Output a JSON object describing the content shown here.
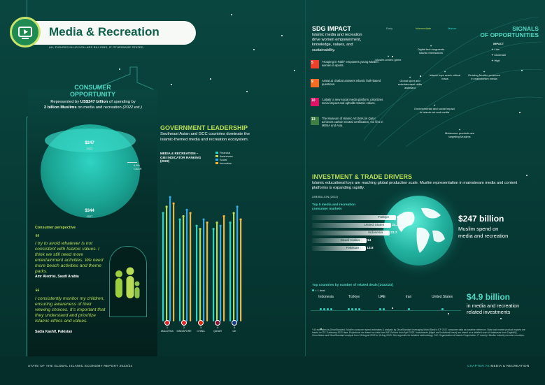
{
  "title": "Media & Recreation",
  "note": "ALL FIGURES IN US DOLLARS BILLIONS, IF OTHERWISE STATED",
  "consumer": {
    "heading_1": "CONSUMER",
    "heading_2": "OPPORTUNITY",
    "text_1": "Represented by ",
    "text_highlight": "US$247 billion",
    "text_2": " of spending by",
    "text_3_bold": "2 billion Muslims",
    "text_4": " on media and recreation ",
    "text_year": "(2022 est.)",
    "value_2022": "$247",
    "year_2022": "2022",
    "value_2027": "$344",
    "year_2027": "2027",
    "cagr_value": "6.8%",
    "cagr_label": "CAGR",
    "perspective_label": "Consumer perspective",
    "quote_1": "I try to avoid whatever is not consistent with Islamic values. I think we still need more entertainment activities. We need more beach activities and theme parks.",
    "quote_1_author": "Amr Aledrisi, Saudi Arabia",
    "quote_2": "I consistently monitor my children, ensuring awareness of their viewing choices. It’s important that they understand and prioritize Islamic ethics and values.",
    "quote_2_author": "Sadia Kashif, Pakistan"
  },
  "gov": {
    "heading": "GOVERNMENT LEADERSHIP",
    "text": "Southeast Asian and GCC countries dominate the Islamic-themed media and recreation ecosystem.",
    "chart_title_1": "MEDIA & RECREATION –",
    "chart_title_2": "GIEI INDICATOR RANKING",
    "chart_title_3": "(2022)",
    "legend": [
      {
        "label": "Financial",
        "color": "#2fd3c3"
      },
      {
        "label": "Awareness",
        "color": "#b9dc57"
      },
      {
        "label": "Social",
        "color": "#3aa8e0"
      },
      {
        "label": "Innovation",
        "color": "#f2b33a"
      }
    ],
    "countries": [
      {
        "rank": "1",
        "name": "MALAYSIA",
        "flag": "#d9272e"
      },
      {
        "rank": "2",
        "name": "SINGAPORE",
        "flag": "#e12b2b"
      },
      {
        "rank": "3",
        "name": "CHINA",
        "flag": "#de2910"
      },
      {
        "rank": "4",
        "name": "QATAR",
        "flag": "#8a1538"
      },
      {
        "rank": "5",
        "name": "UK",
        "flag": "#1f3c88"
      }
    ]
  },
  "chart_data": {
    "type": "bar",
    "title": "MEDIA & RECREATION – GIEI INDICATOR RANKING (2022)",
    "categories": [
      "MALAYSIA",
      "SINGAPORE",
      "CHINA",
      "QATAR",
      "UK"
    ],
    "series": [
      {
        "name": "Financial",
        "values": [
          68,
          64,
          60,
          58,
          62
        ]
      },
      {
        "name": "Awareness",
        "values": [
          72,
          66,
          58,
          62,
          68
        ]
      },
      {
        "name": "Social",
        "values": [
          78,
          70,
          64,
          60,
          72
        ]
      },
      {
        "name": "Innovation",
        "values": [
          74,
          68,
          62,
          66,
          64
        ]
      }
    ],
    "ylim": [
      0,
      100
    ]
  },
  "sdg": {
    "heading": "SDG IMPACT",
    "text": "Islamic media and recreation drive women empowerment, knowledge, values, and sustainability.",
    "items": [
      {
        "num": "5",
        "color": "#ef402b",
        "text": "“Hooping in Faith” empowers young Muslim women in sports."
      },
      {
        "num": "9",
        "color": "#f36d25",
        "text": "Ansari.ai chatbot answers Islamic faith-based questions."
      },
      {
        "num": "10",
        "color": "#dd1367",
        "text": "‘Labaik’ a new social media platform, prioritizes social impact and upholds Islamic values."
      },
      {
        "num": "13",
        "color": "#3f7e44",
        "text": "The Museum of Islamic Art (MIA) in Qatar achieves carbon-neutral certification, the first in MENA and Asia."
      }
    ]
  },
  "signals": {
    "heading_1": "SIGNALS",
    "heading_2": "OF OPPORTUNITIES",
    "stage_early": "Early",
    "stage_intermediate": "Intermediate",
    "stage_mature": "Mature",
    "impact_label": "IMPACT",
    "impact_low": "Low",
    "impact_moderate": "Moderate",
    "impact_high": "High",
    "items": [
      "Digital tech augments Islamic interactions",
      "Muslim-centric game",
      "Islamic toys reach critical mass",
      "Growing Muslim presence in mainstream media",
      "Global sport and entertainment drifts awkward",
      "Environmental and social impact in Islamic art and media",
      "Metaverse products are targeting Muslims"
    ]
  },
  "investment": {
    "heading": "INVESTMENT & TRADE DRIVERS",
    "text": "Islamic educational toys are reaching global production scale. Muslim representation in mainstream media and content platforms is expanding rapidly.",
    "unit": "US$ BILLION (2022)",
    "markets_title_1": "Top 5 media and recreation",
    "markets_title_2": "consumer markets",
    "markets": [
      {
        "name": "Türkiye",
        "value": "26.3"
      },
      {
        "name": "United States",
        "value": "24.3"
      },
      {
        "name": "Indonesia",
        "value": "23.7"
      },
      {
        "name": "Saudi Arabia",
        "value": "14"
      },
      {
        "name": "Pakistan",
        "value": "13.8"
      }
    ],
    "spend_value": "$247 billion",
    "spend_text_1": "Muslim spend on",
    "spend_text_2": "media and recreation",
    "deals_title": "Top countries by number of related deals [2022/23]",
    "deals_legend": "= 1 deal",
    "deals": [
      {
        "name": "Indonesia",
        "count": 4
      },
      {
        "name": "Türkiye",
        "count": 4
      },
      {
        "name": "UAE",
        "count": 2
      },
      {
        "name": "Iran",
        "count": 1
      },
      {
        "name": "United States",
        "count": 1
      }
    ],
    "invest_value": "$4.9 billion",
    "invest_text_1": "in media and recreation",
    "invest_text_2": "related investments",
    "footnote": "* All estimates by DinarStandard. Muslim consumer spend estimates & analysis by DinarStandard leveraging World Bank's ICP 2017 consumer data as baseline reference. State and market product exports are based on ITC Trademap 2022 data. Projections are based on data from IMF Outlook from April 2023. Investments (Mgmt and Individual Issue) are based on a detailed scan of databases from CapitalIQ, Crunchbase and DinarStandard analysis from 16 August 2022 to 15 Aug 2023. See appendix for detailed methodology. OIC: Organization of Islamic Cooperation. IT country: Muslim minority member countries."
  },
  "footer": {
    "left": "STATE OF THE GLOBAL ISLAMIC ECONOMY REPORT 2023/24",
    "right_1": "CHAPTER 7E ",
    "right_2": "MEDIA & RECREATION"
  }
}
